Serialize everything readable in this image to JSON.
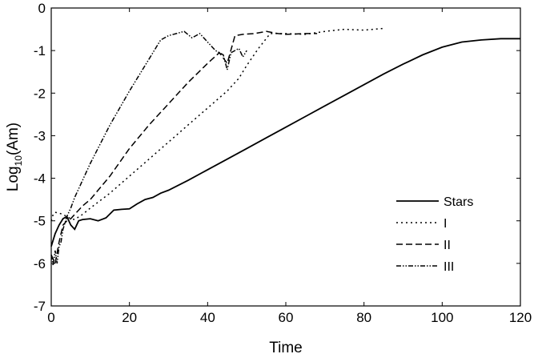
{
  "chart_data": {
    "type": "line",
    "title": "",
    "xlabel": "Time",
    "ylabel_main": "Log",
    "ylabel_sub": "10",
    "ylabel_rest": "(Am)",
    "xlim": [
      0,
      120
    ],
    "ylim": [
      -7,
      0
    ],
    "xticks": [
      0,
      20,
      40,
      60,
      80,
      100,
      120
    ],
    "yticks": [
      0,
      -1,
      -2,
      -3,
      -4,
      -5,
      -6,
      -7
    ],
    "grid": false,
    "legend_position": "lower-right",
    "series": [
      {
        "name": "Stars",
        "dash": "solid",
        "x": [
          0,
          1,
          2,
          3,
          4,
          5,
          6,
          7,
          8,
          10,
          12,
          14,
          16,
          18,
          20,
          22,
          24,
          26,
          28,
          30,
          35,
          40,
          45,
          50,
          55,
          60,
          65,
          70,
          75,
          80,
          85,
          90,
          95,
          100,
          105,
          110,
          115,
          120
        ],
        "y": [
          -5.6,
          -5.3,
          -5.1,
          -4.95,
          -4.9,
          -5.1,
          -5.2,
          -5.0,
          -4.97,
          -4.95,
          -5.0,
          -4.93,
          -4.75,
          -4.73,
          -4.72,
          -4.6,
          -4.5,
          -4.45,
          -4.35,
          -4.28,
          -4.05,
          -3.8,
          -3.55,
          -3.3,
          -3.05,
          -2.8,
          -2.55,
          -2.3,
          -2.05,
          -1.8,
          -1.55,
          -1.32,
          -1.1,
          -0.92,
          -0.8,
          -0.75,
          -0.72,
          -0.72
        ]
      },
      {
        "name": "I",
        "dash": "dotted",
        "x": [
          0,
          0.5,
          1,
          2,
          3,
          4,
          5,
          6,
          8,
          10,
          15,
          20,
          25,
          30,
          35,
          40,
          45,
          48,
          50,
          53,
          56,
          60,
          65,
          70,
          75,
          80,
          85
        ],
        "y": [
          -5.0,
          -4.85,
          -4.8,
          -4.82,
          -4.85,
          -4.9,
          -4.95,
          -4.97,
          -4.85,
          -4.7,
          -4.35,
          -3.95,
          -3.55,
          -3.15,
          -2.75,
          -2.35,
          -1.95,
          -1.65,
          -1.35,
          -0.95,
          -0.6,
          -0.6,
          -0.62,
          -0.55,
          -0.5,
          -0.52,
          -0.48
        ]
      },
      {
        "name": "II",
        "dash": "dashed",
        "x": [
          0,
          1,
          2,
          3,
          4,
          5,
          6,
          8,
          10,
          15,
          20,
          25,
          30,
          35,
          40,
          43,
          45,
          47,
          49,
          52,
          55,
          58,
          60,
          65,
          68
        ],
        "y": [
          -5.8,
          -6.0,
          -5.5,
          -5.1,
          -5.0,
          -4.95,
          -4.85,
          -4.65,
          -4.5,
          -3.95,
          -3.3,
          -2.75,
          -2.25,
          -1.75,
          -1.3,
          -1.05,
          -1.3,
          -0.65,
          -0.62,
          -0.6,
          -0.55,
          -0.6,
          -0.62,
          -0.6,
          -0.6
        ]
      },
      {
        "name": "III",
        "dash": "dash-dot",
        "x": [
          0,
          0.5,
          1,
          1.5,
          2,
          2.5,
          3,
          4,
          5,
          6,
          8,
          10,
          15,
          20,
          25,
          28,
          30,
          32,
          34,
          36,
          38,
          40,
          42,
          44,
          45,
          46,
          47,
          48,
          49,
          50
        ],
        "y": [
          -5.8,
          -6.05,
          -5.7,
          -6.0,
          -5.6,
          -5.5,
          -5.2,
          -4.9,
          -4.7,
          -4.45,
          -4.05,
          -3.65,
          -2.75,
          -1.95,
          -1.2,
          -0.75,
          -0.65,
          -0.6,
          -0.55,
          -0.7,
          -0.6,
          -0.8,
          -1.0,
          -1.1,
          -1.45,
          -1.05,
          -1.0,
          -0.95,
          -1.15,
          -1.0
        ]
      }
    ]
  }
}
